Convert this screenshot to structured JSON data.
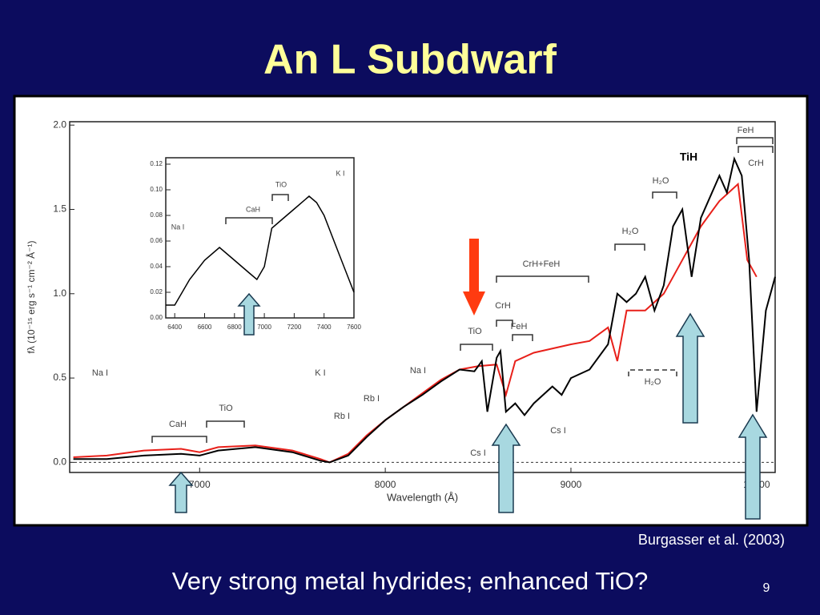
{
  "title": "An L Subdwarf",
  "citation": "Burgasser et al. (2003)",
  "caption": "Very strong metal hydrides; enhanced TiO?",
  "page_number": "9",
  "chart_data": [
    {
      "type": "line",
      "xlabel": "Wavelength (Å)",
      "ylabel": "fλ (10⁻¹⁵ erg s⁻¹ cm⁻² Å⁻¹)",
      "xlim": [
        6300,
        10100
      ],
      "ylim": [
        -0.06,
        2.02
      ],
      "xticks": [
        7000,
        8000,
        9000,
        10000
      ],
      "yticks": [
        {
          "value": 0,
          "label": "0.0"
        },
        0.5,
        {
          "value": 1,
          "label": "1.0"
        },
        1.5,
        {
          "value": 2,
          "label": "2.0"
        }
      ],
      "series": [
        {
          "color": "#000000",
          "x": [
            6320,
            6500,
            6700,
            6900,
            7000,
            7100,
            7300,
            7500,
            7650,
            7700,
            7800,
            7900,
            8000,
            8100,
            8200,
            8300,
            8400,
            8480,
            8520,
            8550,
            8600,
            8620,
            8650,
            8700,
            8750,
            8800,
            8900,
            8950,
            9000,
            9100,
            9200,
            9250,
            9300,
            9350,
            9400,
            9450,
            9500,
            9550,
            9600,
            9650,
            9700,
            9800,
            9840,
            9880,
            9920,
            9960,
            10000,
            10050,
            10100
          ],
          "values": [
            0.02,
            0.02,
            0.04,
            0.05,
            0.04,
            0.07,
            0.09,
            0.06,
            0.01,
            0.0,
            0.04,
            0.15,
            0.25,
            0.33,
            0.4,
            0.48,
            0.55,
            0.54,
            0.6,
            0.3,
            0.62,
            0.66,
            0.3,
            0.35,
            0.28,
            0.35,
            0.45,
            0.4,
            0.5,
            0.55,
            0.7,
            1.0,
            0.95,
            1.0,
            1.1,
            0.9,
            1.05,
            1.4,
            1.5,
            1.1,
            1.45,
            1.7,
            1.6,
            1.8,
            1.7,
            1.2,
            0.3,
            0.9,
            1.1
          ]
        },
        {
          "color": "#e8201a",
          "x": [
            6320,
            6500,
            6700,
            6900,
            7000,
            7100,
            7300,
            7500,
            7650,
            7700,
            7800,
            7900,
            8000,
            8100,
            8200,
            8300,
            8400,
            8500,
            8600,
            8650,
            8700,
            8800,
            9000,
            9100,
            9200,
            9250,
            9300,
            9400,
            9500,
            9600,
            9700,
            9800,
            9900,
            9950,
            10000
          ],
          "values": [
            0.03,
            0.04,
            0.07,
            0.08,
            0.06,
            0.09,
            0.1,
            0.07,
            0.02,
            0.0,
            0.05,
            0.16,
            0.25,
            0.33,
            0.41,
            0.49,
            0.55,
            0.57,
            0.58,
            0.4,
            0.6,
            0.65,
            0.7,
            0.72,
            0.8,
            0.6,
            0.9,
            0.9,
            1.0,
            1.2,
            1.4,
            1.55,
            1.65,
            1.2,
            1.1
          ]
        }
      ],
      "annotations": [
        "Na I",
        "K I",
        "Na I",
        "CaH",
        "TiO",
        "Rb I",
        "Rb I",
        "Cs I",
        "TiO",
        "CrH",
        "FeH",
        "CrH+FeH",
        "Cs I",
        "H₂O",
        "H₂O",
        "H₂O",
        "TiH",
        "FeH",
        "CrH"
      ]
    },
    {
      "type": "line",
      "xlim": [
        6340,
        7600
      ],
      "ylim": [
        0,
        0.125
      ],
      "xticks": [
        6400,
        6600,
        6800,
        7000,
        7200,
        7400,
        7600
      ],
      "yticks": [
        {
          "value": 0,
          "label": "0.00"
        },
        {
          "value": 0.02,
          "label": "0.02"
        },
        {
          "value": 0.04,
          "label": "0.04"
        },
        {
          "value": 0.06,
          "label": "0.06"
        },
        {
          "value": 0.08,
          "label": "0.08"
        },
        {
          "value": 0.1,
          "label": "0.10"
        },
        {
          "value": 0.12,
          "label": "0.12"
        }
      ],
      "series": [
        {
          "color": "#000000",
          "x": [
            6340,
            6400,
            6500,
            6600,
            6700,
            6800,
            6900,
            6950,
            7000,
            7050,
            7100,
            7200,
            7300,
            7350,
            7400,
            7500,
            7600
          ],
          "values": [
            0.01,
            0.01,
            0.03,
            0.045,
            0.055,
            0.045,
            0.035,
            0.03,
            0.04,
            0.07,
            0.075,
            0.085,
            0.095,
            0.09,
            0.08,
            0.05,
            0.02
          ]
        }
      ],
      "annotations": [
        "Na I",
        "CaH",
        "TiO",
        "K I"
      ]
    }
  ]
}
